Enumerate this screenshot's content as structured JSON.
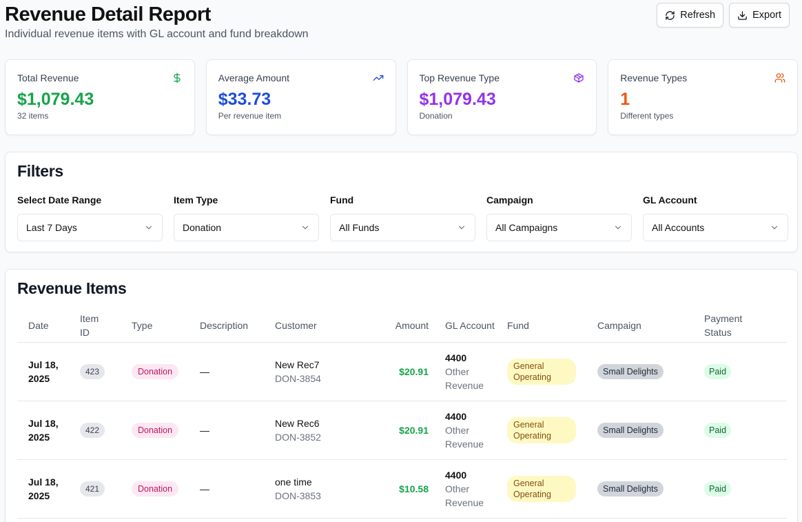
{
  "header": {
    "title": "Revenue Detail Report",
    "subtitle": "Individual revenue items with GL account and fund breakdown",
    "refresh_label": "Refresh",
    "export_label": "Export"
  },
  "stats": [
    {
      "label": "Total Revenue",
      "value": "$1,079.43",
      "sub": "32 items",
      "color": "#16a34a",
      "icon": "dollar-icon"
    },
    {
      "label": "Average Amount",
      "value": "$33.73",
      "sub": "Per revenue item",
      "color": "#1d4ed8",
      "icon": "trending-up-icon"
    },
    {
      "label": "Top Revenue Type",
      "value": "$1,079.43",
      "sub": "Donation",
      "color": "#9333ea",
      "icon": "package-icon"
    },
    {
      "label": "Revenue Types",
      "value": "1",
      "sub": "Different types",
      "color": "#ea580c",
      "icon": "users-icon"
    }
  ],
  "filters": {
    "title": "Filters",
    "items": [
      {
        "label": "Select Date Range",
        "value": "Last 7 Days"
      },
      {
        "label": "Item Type",
        "value": "Donation"
      },
      {
        "label": "Fund",
        "value": "All Funds"
      },
      {
        "label": "Campaign",
        "value": "All Campaigns"
      },
      {
        "label": "GL Account",
        "value": "All Accounts"
      }
    ]
  },
  "table": {
    "title": "Revenue Items",
    "columns": {
      "date": "Date",
      "item_id_1": "Item",
      "item_id_2": "ID",
      "type": "Type",
      "description": "Description",
      "customer": "Customer",
      "amount": "Amount",
      "gl_account": "GL Account",
      "fund": "Fund",
      "campaign": "Campaign",
      "payment_status_1": "Payment",
      "payment_status_2": "Status"
    },
    "rows": [
      {
        "date1": "Jul 18,",
        "date2": "2025",
        "id": "423",
        "type": "Donation",
        "desc": "—",
        "cust": "New Rec7",
        "code": "DON-3854",
        "amount": "$20.91",
        "gl_code": "4400",
        "gl_name1": "Other",
        "gl_name2": "Revenue",
        "fund1": "General",
        "fund2": "Operating",
        "campaign": "Small Delights",
        "status": "Paid"
      },
      {
        "date1": "Jul 18,",
        "date2": "2025",
        "id": "422",
        "type": "Donation",
        "desc": "—",
        "cust": "New Rec6",
        "code": "DON-3852",
        "amount": "$20.91",
        "gl_code": "4400",
        "gl_name1": "Other",
        "gl_name2": "Revenue",
        "fund1": "General",
        "fund2": "Operating",
        "campaign": "Small Delights",
        "status": "Paid"
      },
      {
        "date1": "Jul 18,",
        "date2": "2025",
        "id": "421",
        "type": "Donation",
        "desc": "—",
        "cust": "one time",
        "code": "DON-3853",
        "amount": "$10.58",
        "gl_code": "4400",
        "gl_name1": "Other",
        "gl_name2": "Revenue",
        "fund1": "General",
        "fund2": "Operating",
        "campaign": "Small Delights",
        "status": "Paid"
      }
    ]
  }
}
